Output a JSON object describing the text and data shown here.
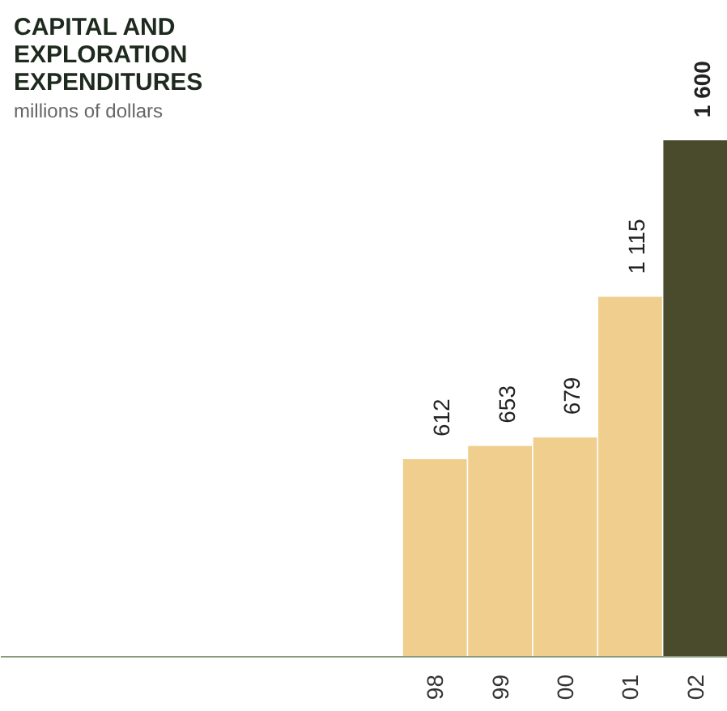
{
  "chart_data": {
    "type": "bar",
    "title": "CAPITAL AND EXPLORATION EXPENDITURES",
    "subtitle": "millions of dollars",
    "categories": [
      "98",
      "99",
      "00",
      "01",
      "02"
    ],
    "values": [
      612,
      653,
      679,
      1115,
      1600
    ],
    "colors": [
      "#f0cf8e",
      "#f0cf8e",
      "#f0cf8e",
      "#f0cf8e",
      "#4a4a2c"
    ],
    "data_labels": true
  }
}
